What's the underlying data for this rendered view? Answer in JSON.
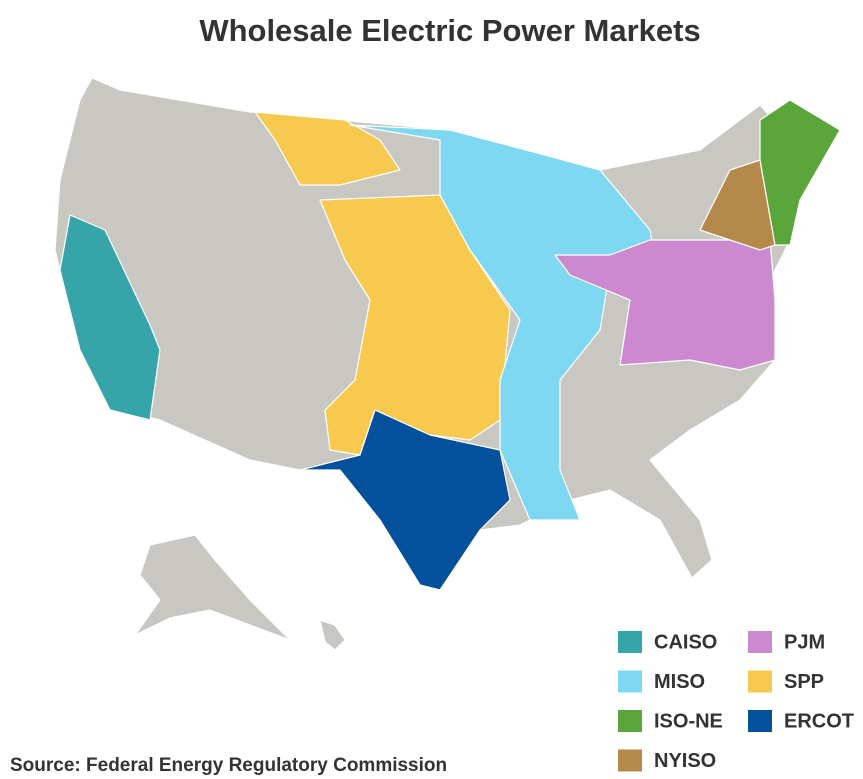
{
  "title": "Wholesale Electric Power Markets",
  "legend": [
    {
      "label": "CAISO",
      "color": "#35a5a9"
    },
    {
      "label": "MISO",
      "color": "#7fd8f2"
    },
    {
      "label": "ISO-NE",
      "color": "#5aa63a"
    },
    {
      "label": "NYISO",
      "color": "#b5894a"
    },
    {
      "label": "PJM",
      "color": "#cc89cf"
    },
    {
      "label": "SPP",
      "color": "#f7c94f"
    },
    {
      "label": "ERCOT",
      "color": "#03509c"
    }
  ],
  "source": "Source: Federal Energy Regulatory Commission"
}
